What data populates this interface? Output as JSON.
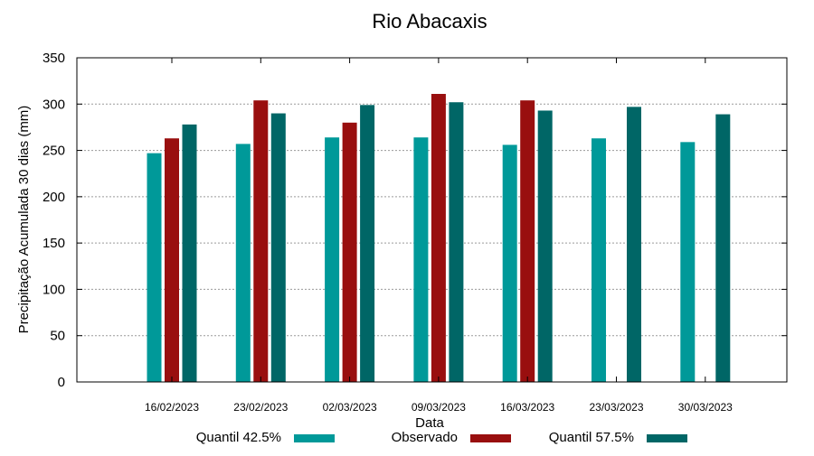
{
  "chart_data": {
    "type": "bar",
    "title": "Rio Abacaxis",
    "xlabel": "Data",
    "ylabel": "Precipitação Acumulada 30 dias (mm)",
    "ylim": [
      0,
      350
    ],
    "yticks": [
      0,
      50,
      100,
      150,
      200,
      250,
      300,
      350
    ],
    "grid": true,
    "legend_position": "bottom",
    "categories": [
      "16/02/2023",
      "23/02/2023",
      "02/03/2023",
      "09/03/2023",
      "16/03/2023",
      "23/03/2023",
      "30/03/2023"
    ],
    "series": [
      {
        "name": "Quantil 42.5%",
        "color": "#009999",
        "values": [
          247,
          257,
          264,
          264,
          256,
          263,
          259
        ]
      },
      {
        "name": "Observado",
        "color": "#990f0f",
        "values": [
          263,
          304,
          280,
          311,
          304,
          null,
          null
        ]
      },
      {
        "name": "Quantil 57.5%",
        "color": "#006666",
        "values": [
          278,
          290,
          299,
          302,
          293,
          297,
          289
        ]
      }
    ]
  }
}
